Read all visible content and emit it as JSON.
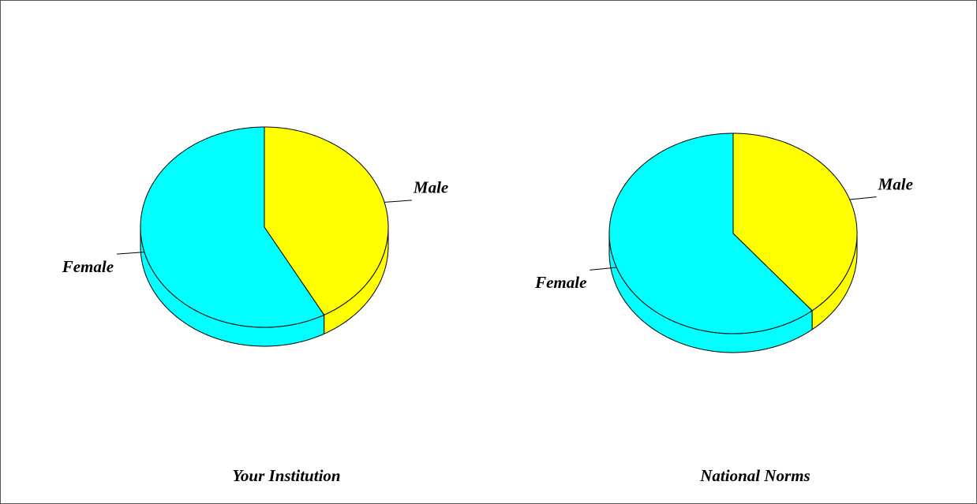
{
  "chart_data": [
    {
      "type": "pie",
      "title": "Your Institution",
      "categories": [
        "Male",
        "Female"
      ],
      "values": [
        42,
        58
      ],
      "colors": [
        "#ffff00",
        "#00ffff"
      ]
    },
    {
      "type": "pie",
      "title": "National Norms",
      "categories": [
        "Male",
        "Female"
      ],
      "values": [
        39,
        61
      ],
      "colors": [
        "#ffff00",
        "#00ffff"
      ]
    }
  ]
}
